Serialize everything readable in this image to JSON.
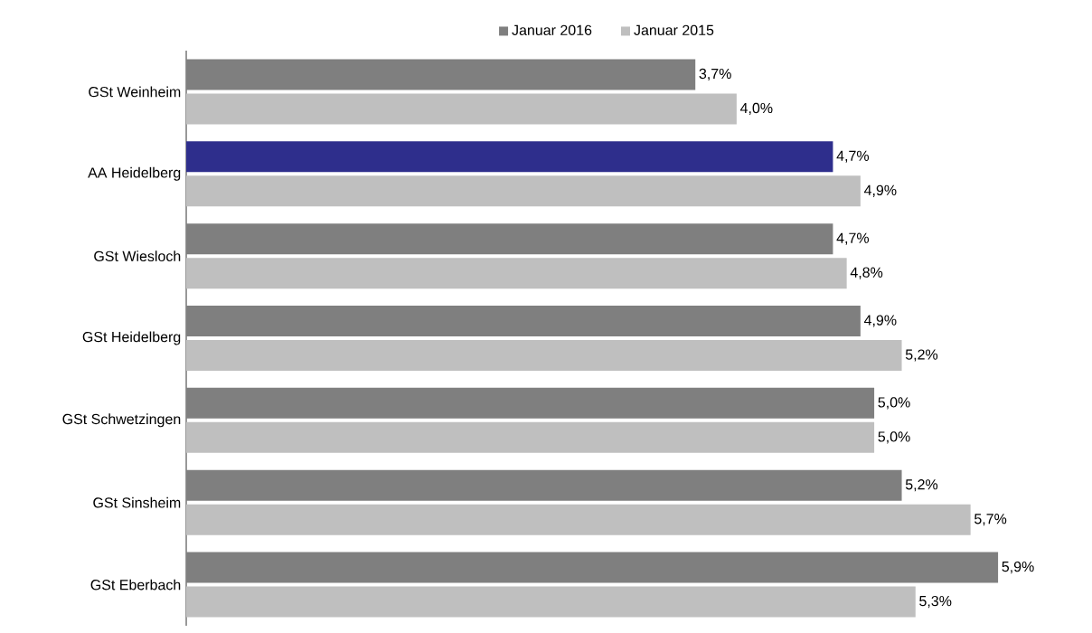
{
  "chart_data": {
    "type": "bar",
    "orientation": "horizontal",
    "categories": [
      "GSt Weinheim",
      "AA Heidelberg",
      "GSt Wiesloch",
      "GSt Heidelberg",
      "GSt Schwetzingen",
      "GSt Sinsheim",
      "GSt Eberbach"
    ],
    "series": [
      {
        "name": "Januar 2016",
        "color": "#7f7f7f",
        "colors": [
          "#7f7f7f",
          "#2e2e8c",
          "#7f7f7f",
          "#7f7f7f",
          "#7f7f7f",
          "#7f7f7f",
          "#7f7f7f"
        ],
        "values": [
          3.7,
          4.7,
          4.7,
          4.9,
          5.0,
          5.2,
          5.9
        ],
        "value_labels": [
          "3,7%",
          "4,7%",
          "4,7%",
          "4,9%",
          "5,0%",
          "5,2%",
          "5,9%"
        ]
      },
      {
        "name": "Januar 2015",
        "color": "#bfbfbf",
        "values": [
          4.0,
          4.9,
          4.8,
          5.2,
          5.0,
          5.7,
          5.3
        ],
        "value_labels": [
          "4,0%",
          "4,9%",
          "4,8%",
          "5,2%",
          "5,0%",
          "5,7%",
          "5,3%"
        ]
      }
    ],
    "tick_labels": "y",
    "legend": "top"
  }
}
